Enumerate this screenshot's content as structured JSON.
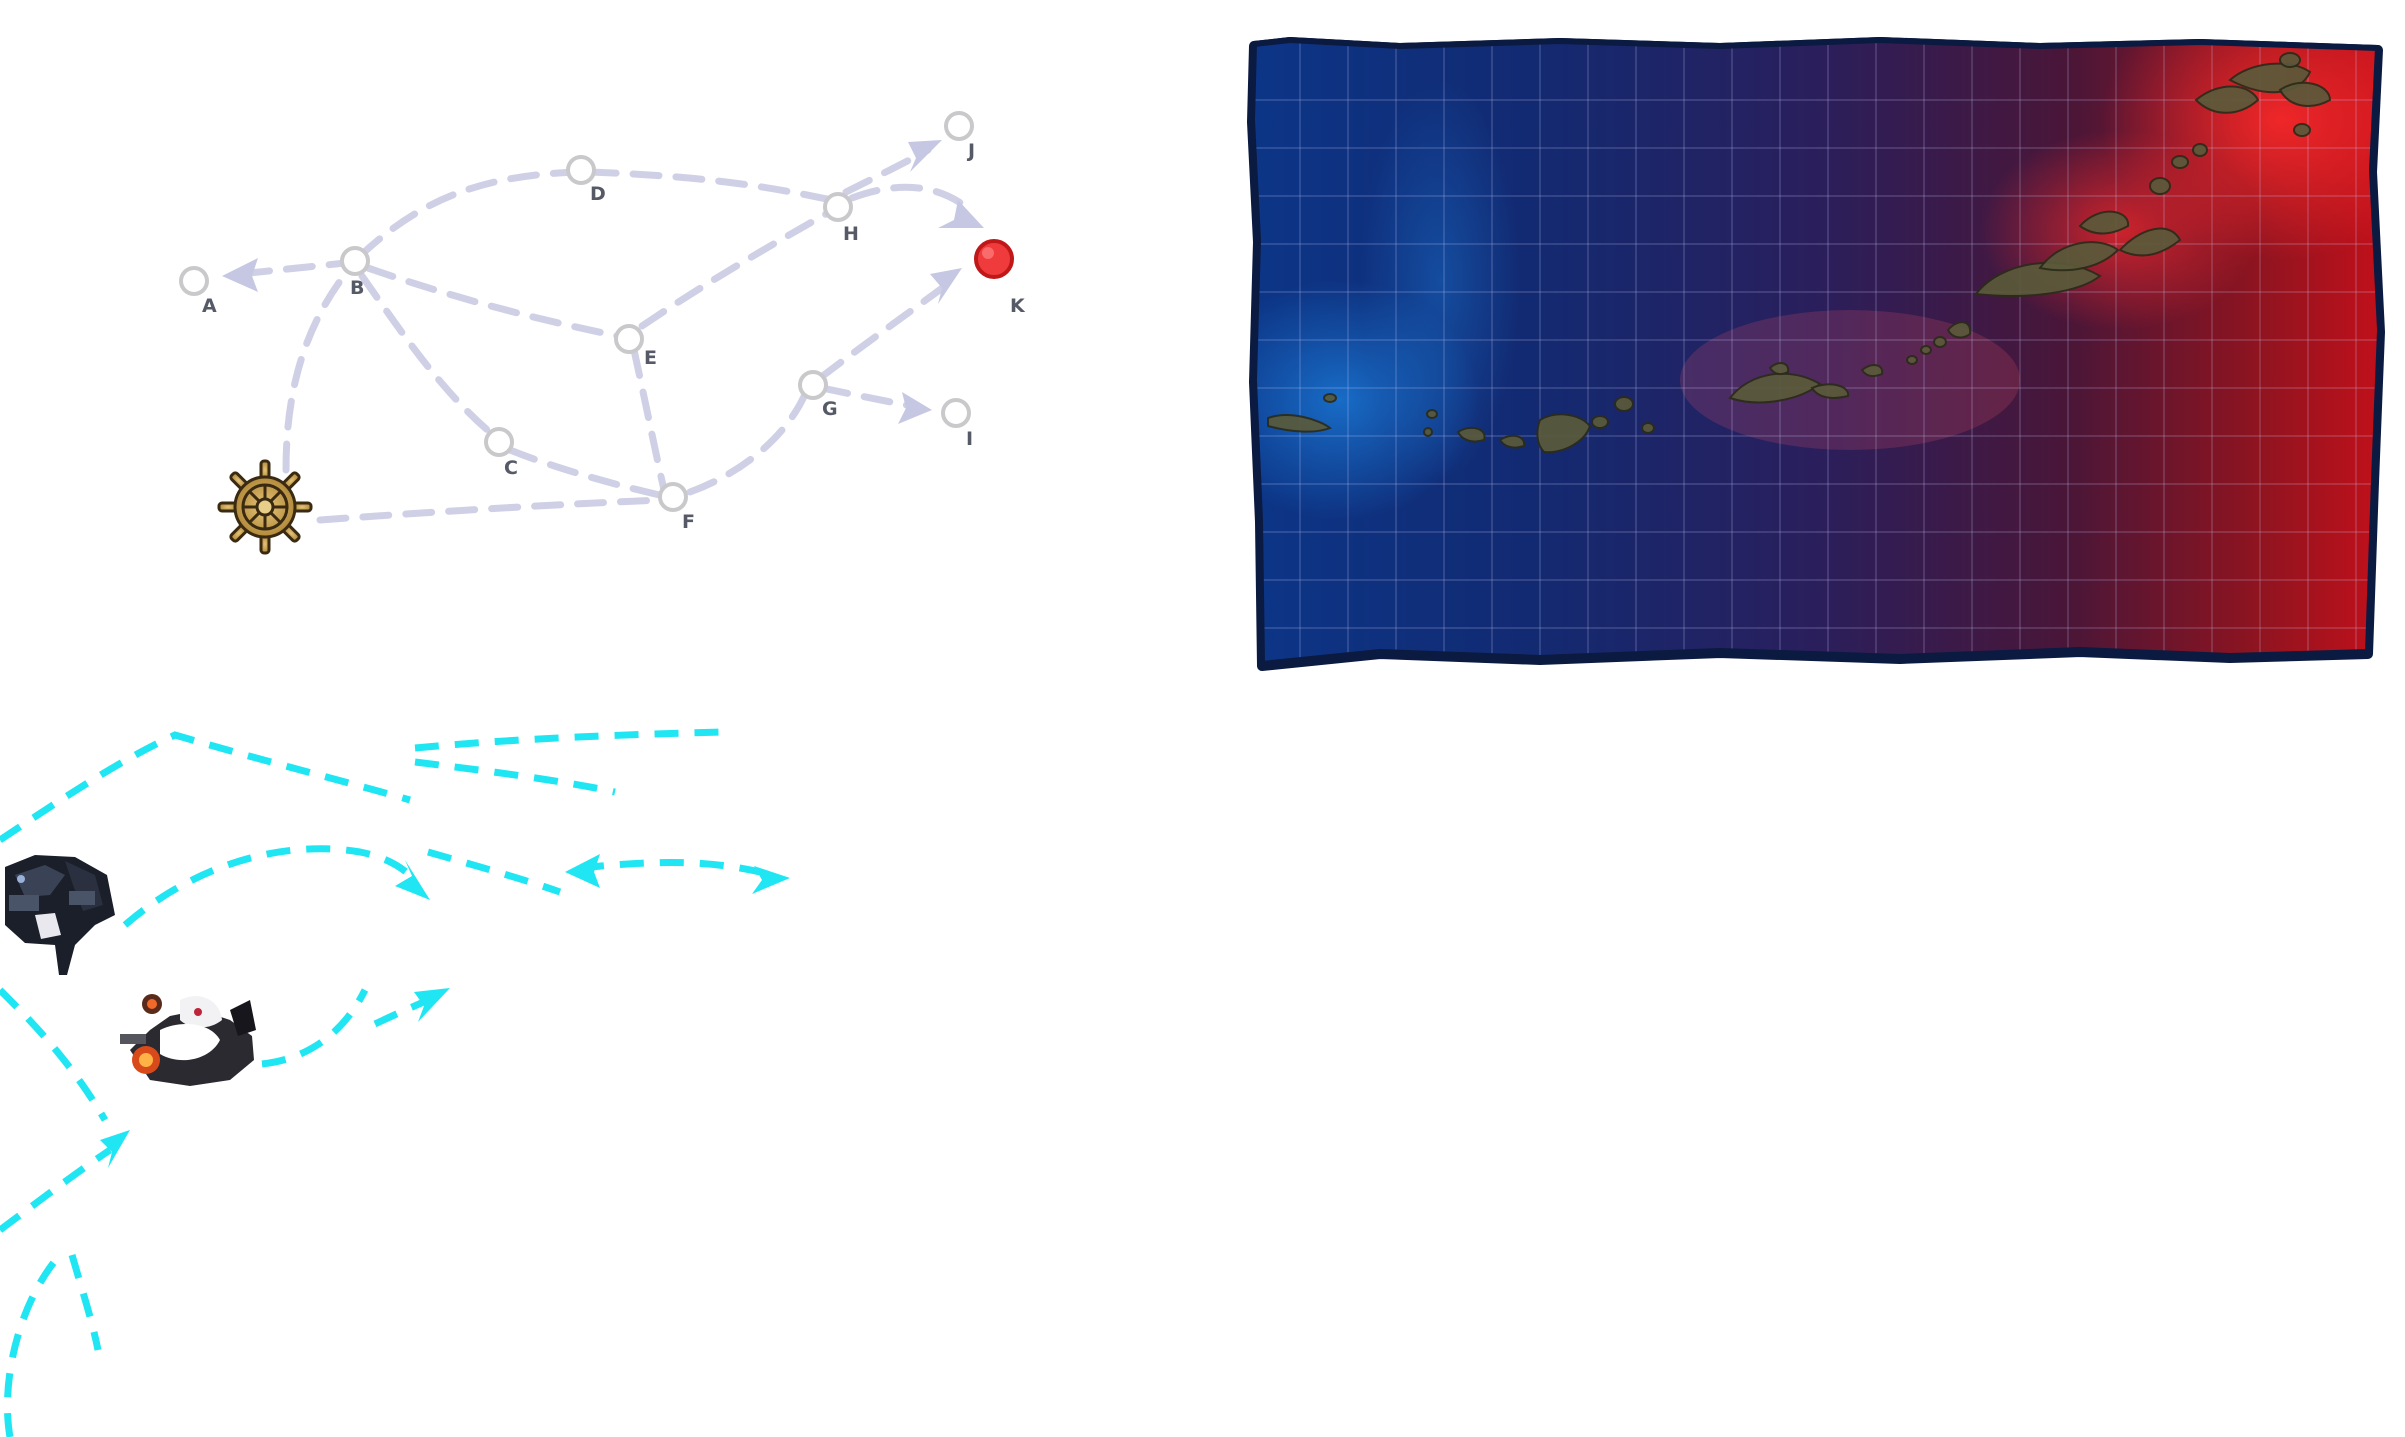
{
  "route_map": {
    "nodes": [
      {
        "id": "A",
        "label": "A"
      },
      {
        "id": "B",
        "label": "B"
      },
      {
        "id": "C",
        "label": "C"
      },
      {
        "id": "D",
        "label": "D"
      },
      {
        "id": "E",
        "label": "E"
      },
      {
        "id": "F",
        "label": "F"
      },
      {
        "id": "G",
        "label": "G"
      },
      {
        "id": "H",
        "label": "H"
      },
      {
        "id": "I",
        "label": "I"
      },
      {
        "id": "J",
        "label": "J"
      },
      {
        "id": "K",
        "label": "K"
      }
    ],
    "start_icon": "ship-wheel-icon",
    "boss_node": "K",
    "colors": {
      "route": "#cfd0e6",
      "node_ring": "#c9c9cc",
      "boss_fill": "#ef3b3b",
      "wheel": "#c9a24c",
      "arrow_overlay": "#1fe6f2"
    }
  },
  "sea_map": {
    "colors": {
      "west": "#0d2f7a",
      "east": "#b51010",
      "frame": "#0b1a40"
    }
  },
  "sprites": {
    "abyssal_ship_1": "abyssal-ship-dark-icon",
    "abyssal_ship_2": "abyssal-princess-icon"
  }
}
